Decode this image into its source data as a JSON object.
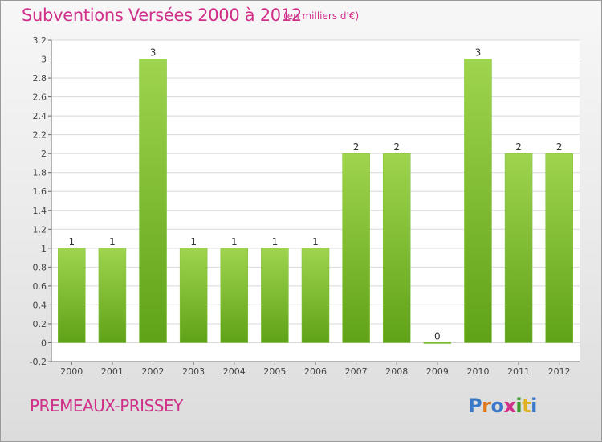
{
  "header": {
    "title": "Subventions Versées 2000 à 2012",
    "unit": "(en milliers d'€)"
  },
  "footer": {
    "commune": "PREMEAUX-PRISSEY",
    "logo_text": "Proxiti"
  },
  "colors": {
    "title": "#d0308a",
    "bar_light": "#9fd44e",
    "bar_dark": "#5fa218",
    "logo": [
      "#3a78c8",
      "#e07a1c",
      "#3a78c8",
      "#d0308a",
      "#3a9a2a",
      "#e0b020",
      "#3a78c8"
    ]
  },
  "chart_data": {
    "type": "bar",
    "categories": [
      "2000",
      "2001",
      "2002",
      "2003",
      "2004",
      "2005",
      "2006",
      "2007",
      "2008",
      "2009",
      "2010",
      "2011",
      "2012"
    ],
    "values": [
      1,
      1,
      3,
      1,
      1,
      1,
      1,
      2,
      2,
      0,
      3,
      2,
      2
    ],
    "data_labels": [
      "1",
      "1",
      "3",
      "1",
      "1",
      "1",
      "1",
      "2",
      "2",
      "0",
      "3",
      "2",
      "2"
    ],
    "title": "Subventions Versées 2000 à 2012",
    "ylim": [
      -0.2,
      3.2
    ],
    "yticks": [
      "-0.2",
      "0",
      "0.2",
      "0.4",
      "0.6",
      "0.8",
      "1",
      "1.2",
      "1.4",
      "1.6",
      "1.8",
      "2",
      "2.2",
      "2.4",
      "2.6",
      "2.8",
      "3",
      "3.2"
    ],
    "ytick_values": [
      -0.2,
      0,
      0.2,
      0.4,
      0.6,
      0.8,
      1,
      1.2,
      1.4,
      1.6,
      1.8,
      2,
      2.2,
      2.4,
      2.6,
      2.8,
      3,
      3.2
    ],
    "grid": true
  }
}
